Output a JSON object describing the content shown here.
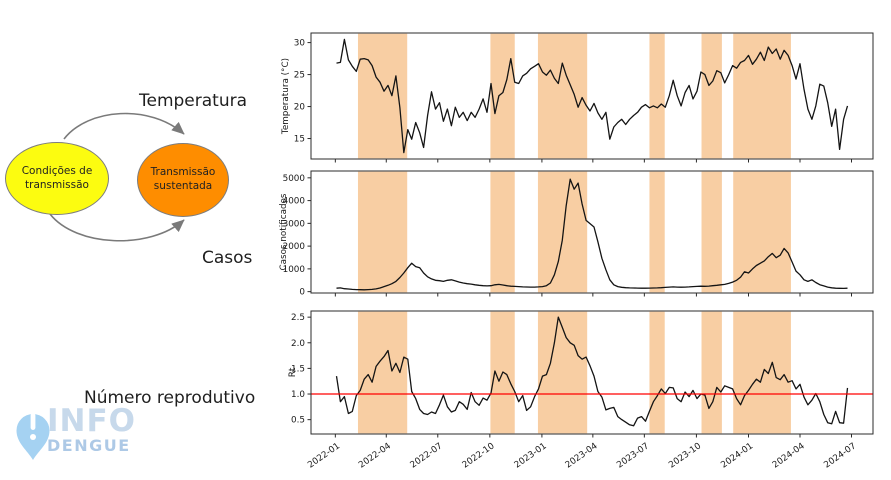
{
  "diagram": {
    "title_top": "Temperatura",
    "label_middle": "Casos",
    "label_bottom": "Número reprodutivo",
    "node_left": {
      "line1": "Condições de",
      "line2": "transmissão",
      "fill": "#fcfc10",
      "border": "#7d7d7d"
    },
    "node_right": {
      "line1": "Transmissão",
      "line2": "sustentada",
      "fill": "#fe8d00",
      "border": "#7d7d7d"
    },
    "arrow_color": "#7a7a7a"
  },
  "logo": {
    "info": "INFO",
    "dengue": "DENGUE",
    "pin_color": "#a5d2f2",
    "info_color": "#c7d9eb",
    "dengue_color": "#adc9e6"
  },
  "chart_data": {
    "type": "line",
    "x": {
      "start_date": "2022-01-03",
      "step_days": 7,
      "xlim_days": [
        -45,
        948
      ],
      "tick_days": [
        -2,
        88,
        179,
        271,
        363,
        453,
        544,
        636,
        728,
        819,
        910
      ],
      "tick_labels": [
        "2022-01",
        "2022-04",
        "2022-07",
        "2022-10",
        "2023-01",
        "2023-04",
        "2023-07",
        "2023-10",
        "2024-01",
        "2024-04",
        "2024-07"
      ]
    },
    "bands": {
      "color": "#f8cea3",
      "ranges_days": [
        [
          38,
          125
        ],
        [
          272,
          315
        ],
        [
          356,
          443
        ],
        [
          553,
          580
        ],
        [
          645,
          681
        ],
        [
          701,
          803
        ]
      ]
    },
    "spine_color": "#2b2b2b",
    "tick_text_color": "#1a1a1a",
    "charts": [
      {
        "id": "temperatura",
        "ylabel": "Temperatura (°C)",
        "ylim": [
          11.8,
          31.5
        ],
        "yticks": [
          15,
          20,
          25,
          30
        ],
        "line_color": "#141414",
        "show_x_labels": false,
        "values": [
          26.8,
          26.9,
          30.5,
          27.3,
          26.3,
          25.5,
          27.4,
          27.5,
          27.3,
          26.4,
          24.6,
          23.8,
          22.4,
          23.3,
          21.7,
          24.8,
          19.8,
          12.8,
          16.4,
          14.9,
          17.5,
          15.9,
          13.6,
          18.6,
          22.3,
          19.6,
          20.6,
          17.7,
          19.6,
          17.0,
          19.9,
          18.3,
          19.1,
          17.8,
          19.1,
          18.3,
          19.6,
          21.2,
          19.1,
          23.6,
          18.9,
          21.7,
          22.2,
          24.2,
          27.5,
          23.8,
          23.6,
          24.8,
          25.2,
          25.9,
          26.3,
          26.7,
          25.4,
          24.9,
          25.7,
          24.4,
          23.6,
          26.8,
          24.9,
          23.4,
          21.9,
          19.9,
          21.4,
          20.2,
          19.3,
          20.5,
          19.0,
          18.0,
          19.1,
          14.9,
          16.8,
          17.5,
          18.0,
          17.2,
          18.0,
          18.6,
          19.1,
          19.9,
          20.3,
          19.8,
          20.1,
          19.8,
          20.4,
          19.9,
          21.7,
          24.1,
          21.7,
          20.1,
          22.2,
          23.3,
          21.2,
          22.4,
          25.4,
          25.0,
          23.3,
          24.0,
          25.6,
          25.3,
          23.7,
          25.0,
          26.4,
          26.0,
          26.9,
          27.2,
          28.0,
          26.6,
          27.4,
          28.5,
          27.2,
          29.3,
          28.3,
          29.0,
          27.4,
          28.8,
          28.0,
          26.4,
          24.3,
          26.7,
          22.7,
          19.6,
          18.0,
          20.1,
          23.5,
          23.2,
          20.6,
          16.9,
          19.6,
          13.3,
          18.0,
          20.1
        ]
      },
      {
        "id": "casos",
        "ylabel": "Casos notificados",
        "ylim": [
          -60,
          5300
        ],
        "yticks": [
          0,
          1000,
          2000,
          3000,
          4000,
          5000
        ],
        "line_color": "#141414",
        "show_x_labels": false,
        "values": [
          150,
          165,
          130,
          115,
          100,
          90,
          85,
          80,
          90,
          100,
          120,
          160,
          220,
          280,
          350,
          450,
          620,
          820,
          1050,
          1250,
          1100,
          1050,
          820,
          650,
          560,
          500,
          480,
          450,
          500,
          520,
          470,
          420,
          380,
          350,
          330,
          300,
          280,
          260,
          250,
          260,
          300,
          320,
          290,
          260,
          240,
          230,
          220,
          210,
          205,
          200,
          200,
          210,
          220,
          260,
          380,
          740,
          1320,
          2260,
          3780,
          4940,
          4500,
          4770,
          3850,
          3130,
          2990,
          2840,
          2190,
          1465,
          960,
          520,
          300,
          220,
          190,
          175,
          165,
          160,
          155,
          150,
          150,
          155,
          160,
          165,
          175,
          185,
          200,
          210,
          200,
          195,
          200,
          210,
          220,
          230,
          240,
          235,
          245,
          260,
          280,
          300,
          320,
          360,
          420,
          500,
          640,
          870,
          820,
          1000,
          1150,
          1250,
          1350,
          1535,
          1680,
          1490,
          1600,
          1900,
          1700,
          1300,
          900,
          740,
          520,
          450,
          520,
          400,
          304,
          250,
          200,
          170,
          150,
          145,
          143,
          150
        ]
      },
      {
        "id": "rt",
        "ylabel": "Rt",
        "ylim": [
          0.22,
          2.62
        ],
        "yticks": [
          0.5,
          1.0,
          1.5,
          2.0,
          2.5
        ],
        "line_color": "#141414",
        "hline": {
          "y": 1.0,
          "color": "#ff0000"
        },
        "show_x_labels": true,
        "values": [
          1.35,
          0.85,
          0.95,
          0.62,
          0.66,
          0.97,
          1.07,
          1.29,
          1.38,
          1.23,
          1.54,
          1.64,
          1.73,
          1.85,
          1.45,
          1.6,
          1.42,
          1.72,
          1.68,
          1.05,
          0.91,
          0.7,
          0.62,
          0.6,
          0.65,
          0.62,
          0.79,
          0.98,
          0.75,
          0.65,
          0.68,
          0.85,
          0.8,
          0.7,
          1.03,
          0.85,
          0.78,
          0.92,
          0.88,
          1.02,
          1.45,
          1.25,
          1.43,
          1.38,
          1.2,
          1.05,
          0.85,
          0.97,
          0.68,
          0.75,
          0.95,
          1.1,
          1.35,
          1.38,
          1.6,
          2.0,
          2.5,
          2.3,
          2.1,
          2.0,
          1.95,
          1.75,
          1.68,
          1.72,
          1.55,
          1.35,
          1.05,
          0.94,
          0.69,
          0.72,
          0.74,
          0.56,
          0.5,
          0.45,
          0.4,
          0.38,
          0.53,
          0.56,
          0.47,
          0.66,
          0.85,
          0.97,
          1.1,
          1.01,
          1.13,
          1.12,
          0.91,
          0.85,
          1.04,
          0.95,
          1.07,
          0.91,
          1.0,
          0.98,
          0.72,
          0.85,
          1.13,
          1.04,
          1.16,
          1.13,
          1.1,
          0.91,
          0.79,
          0.97,
          1.07,
          1.19,
          1.29,
          1.23,
          1.48,
          1.4,
          1.62,
          1.32,
          1.28,
          1.38,
          1.23,
          1.26,
          1.1,
          1.19,
          0.94,
          0.79,
          0.88,
          1.01,
          0.85,
          0.6,
          0.44,
          0.42,
          0.66,
          0.44,
          0.43,
          1.12
        ]
      }
    ]
  }
}
